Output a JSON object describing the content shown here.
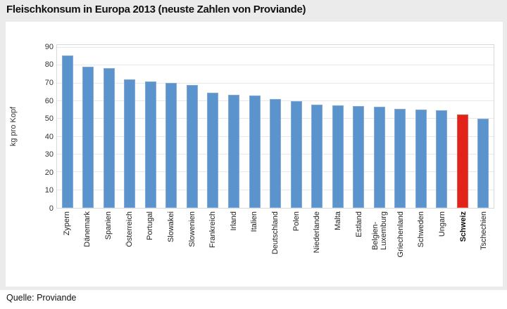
{
  "title": "Fleischkonsum in Europa 2013 (neuste Zahlen von Proviande)",
  "source": "Quelle: Proviande",
  "chart_data": {
    "type": "bar",
    "title": "Fleischkonsum in Europa 2013 (neuste Zahlen von Proviande)",
    "xlabel": "",
    "ylabel": "kg pro Kopf",
    "ylim": [
      0,
      90
    ],
    "yticks": [
      0,
      10,
      20,
      30,
      40,
      50,
      60,
      70,
      80,
      90
    ],
    "grid": "horizontal",
    "legend_position": "none",
    "categories": [
      "Zypern",
      "Dänemark",
      "Spanien",
      "Österreich",
      "Portugal",
      "Slowakei",
      "Slowenien",
      "Frankreich",
      "Irland",
      "Italien",
      "Deutschland",
      "Polen",
      "Niederlande",
      "Malta",
      "Estland",
      "Belgien-Luxemburg",
      "Griechenland",
      "Schweden",
      "Ungarn",
      "Schweiz",
      "Tschechien"
    ],
    "display_labels": [
      "Zypern",
      "Dänemark",
      "Spanien",
      "Österreich",
      "Portugal",
      "Slowakei",
      "Slowenien",
      "Frankreich",
      "Irland",
      "Italien",
      "Deutschland",
      "Polen",
      "Niederlande",
      "Malta",
      "Estland",
      "Belgien-\nLuxemburg",
      "Griechenland",
      "Schweden",
      "Ungarn",
      "Schweiz",
      "Tschechien"
    ],
    "values": [
      85.5,
      79.3,
      78.4,
      72.3,
      71.0,
      70.1,
      69.0,
      64.6,
      63.5,
      63.3,
      61.0,
      60.0,
      58.0,
      57.5,
      57.1,
      56.9,
      55.5,
      55.2,
      54.8,
      52.6,
      50.0
    ],
    "highlight_category": "Schweiz",
    "colors": {
      "bar": "#5b93cc",
      "bar_border": "#84abd8",
      "bar_highlight": "#e2231a",
      "bar_highlight_border": "#e9564d"
    }
  }
}
